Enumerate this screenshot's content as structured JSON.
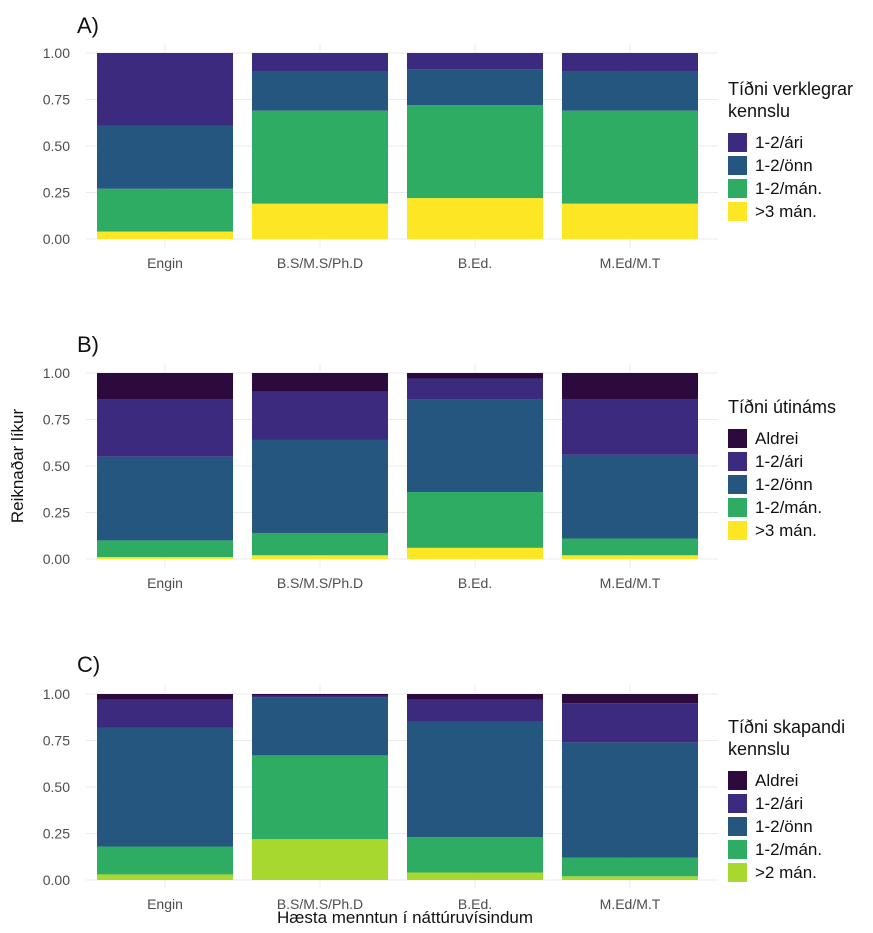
{
  "figure": {
    "ylabel": "Reiknaðar líkur",
    "xlabel": "Hæsta menntun í náttúruvísindum"
  },
  "chart_data": [
    {
      "type": "bar",
      "stacked": true,
      "panel_label": "A)",
      "categories": [
        "Engin",
        "B.S/M.S/Ph.D",
        "B.Ed.",
        "M.Ed/M.T"
      ],
      "ylim": [
        0,
        1
      ],
      "yticks": [
        "0.00",
        "0.25",
        "0.50",
        "0.75",
        "1.00"
      ],
      "legend_title": [
        "Tíðni verklegrar",
        "kennslu"
      ],
      "legend_position": "right",
      "grid": true,
      "series": [
        {
          "name": "1-2/ári",
          "color": "#3b2a7e",
          "values": [
            0.39,
            0.1,
            0.09,
            0.1
          ]
        },
        {
          "name": "1-2/önn",
          "color": "#24567f",
          "values": [
            0.34,
            0.21,
            0.19,
            0.21
          ]
        },
        {
          "name": "1-2/mán.",
          "color": "#2fac63",
          "values": [
            0.23,
            0.5,
            0.5,
            0.5
          ]
        },
        {
          "name": ">3 mán.",
          "color": "#fde725",
          "values": [
            0.04,
            0.19,
            0.22,
            0.19
          ]
        }
      ]
    },
    {
      "type": "bar",
      "stacked": true,
      "panel_label": "B)",
      "categories": [
        "Engin",
        "B.S/M.S/Ph.D",
        "B.Ed.",
        "M.Ed/M.T"
      ],
      "ylim": [
        0,
        1
      ],
      "yticks": [
        "0.00",
        "0.25",
        "0.50",
        "0.75",
        "1.00"
      ],
      "legend_title": [
        "Tíðni útináms"
      ],
      "legend_position": "right",
      "grid": true,
      "series": [
        {
          "name": "Aldrei",
          "color": "#2d0a3e",
          "values": [
            0.14,
            0.1,
            0.03,
            0.14
          ]
        },
        {
          "name": "1-2/ári",
          "color": "#3b2a7e",
          "values": [
            0.31,
            0.26,
            0.11,
            0.3
          ]
        },
        {
          "name": "1-2/önn",
          "color": "#24567f",
          "values": [
            0.45,
            0.5,
            0.5,
            0.45
          ]
        },
        {
          "name": "1-2/mán.",
          "color": "#2fac63",
          "values": [
            0.09,
            0.12,
            0.3,
            0.09
          ]
        },
        {
          "name": ">3 mán.",
          "color": "#fde725",
          "values": [
            0.01,
            0.02,
            0.06,
            0.02
          ]
        }
      ]
    },
    {
      "type": "bar",
      "stacked": true,
      "panel_label": "C)",
      "categories": [
        "Engin",
        "B.S/M.S/Ph.D",
        "B.Ed.",
        "M.Ed/M.T"
      ],
      "ylim": [
        0,
        1
      ],
      "yticks": [
        "0.00",
        "0.25",
        "0.50",
        "0.75",
        "1.00"
      ],
      "legend_title": [
        "Tíðni skapandi",
        "kennslu"
      ],
      "legend_position": "right",
      "grid": true,
      "series": [
        {
          "name": "Aldrei",
          "color": "#2d0a3e",
          "values": [
            0.03,
            0.01,
            0.03,
            0.05
          ]
        },
        {
          "name": "1-2/ári",
          "color": "#3b2a7e",
          "values": [
            0.15,
            0.01,
            0.12,
            0.21
          ]
        },
        {
          "name": "1-2/önn",
          "color": "#24567f",
          "values": [
            0.64,
            0.31,
            0.62,
            0.62
          ]
        },
        {
          "name": "1-2/mán.",
          "color": "#2fac63",
          "values": [
            0.15,
            0.45,
            0.19,
            0.1
          ]
        },
        {
          "name": ">2 mán.",
          "color": "#a6d82e",
          "values": [
            0.03,
            0.22,
            0.04,
            0.02
          ]
        }
      ]
    }
  ]
}
